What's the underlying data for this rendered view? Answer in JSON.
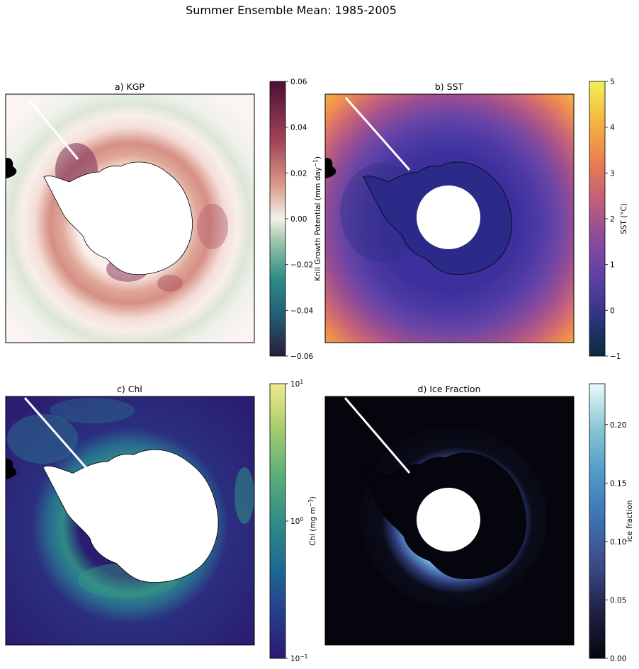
{
  "figure": {
    "title": "Summer Ensemble Mean: 1985-2005"
  },
  "chart_data": [
    {
      "type": "heatmap",
      "panel": "a",
      "title": "a) KGP",
      "projection": "south polar stereographic",
      "colormap": "diverging (teal-white-maroon)",
      "colorbar": {
        "label": "Krill Growth Potential (mm day$^{-1}$)",
        "label_main": "Krill Growth Potential (mm day",
        "label_sup": "−1",
        "label_end": ")",
        "range": [
          -0.06,
          0.06
        ],
        "scale": "linear",
        "ticks": [
          "−0.06",
          "−0.04",
          "−0.02",
          "0.00",
          "0.02",
          "0.04",
          "0.06"
        ],
        "colors": [
          "#2a1d39",
          "#235a73",
          "#2c8b86",
          "#82b89c",
          "#f4f1ec",
          "#d59a8a",
          "#a54558",
          "#4c0f36"
        ]
      },
      "field_notes": "ring of positive values around Antarctic coast, weak negative outer band"
    },
    {
      "type": "heatmap",
      "panel": "b",
      "title": "b) SST",
      "projection": "south polar stereographic",
      "colormap": "thermal (navy-purple-orange-yellow)",
      "colorbar": {
        "label_main": "SST (°C)",
        "range": [
          -1,
          5
        ],
        "scale": "linear",
        "ticks": [
          "−1",
          "0",
          "1",
          "2",
          "3",
          "4",
          "5"
        ],
        "colors": [
          "#0b2a3f",
          "#2f3480",
          "#5b3fa6",
          "#8d4b9c",
          "#c25f78",
          "#ea7f4f",
          "#f5b740",
          "#f0f254"
        ]
      }
    },
    {
      "type": "heatmap",
      "panel": "c",
      "title": "c) Chl",
      "projection": "south polar stereographic",
      "colormap": "haline (indigo-teal-yellow)",
      "colorbar": {
        "label_main": "Chl (mg m",
        "label_sup": "−3",
        "label_end": ")",
        "range": [
          0.1,
          10
        ],
        "scale": "log",
        "ticks_base": [
          "10",
          "10",
          "10"
        ],
        "ticks_exp": [
          "−1",
          "0",
          "1"
        ],
        "tick_values": [
          0.1,
          1,
          10
        ],
        "colors": [
          "#2a1b70",
          "#263f8f",
          "#1d6a91",
          "#2f8e87",
          "#5cae7a",
          "#a3cc6e",
          "#f2e98b"
        ]
      }
    },
    {
      "type": "heatmap",
      "panel": "d",
      "title": "d) Ice Fraction",
      "projection": "south polar stereographic",
      "colormap": "ice (black-blue-white)",
      "colorbar": {
        "label_main": "ice fraction",
        "range": [
          0.0,
          0.235
        ],
        "scale": "linear",
        "ticks": [
          "0.00",
          "0.05",
          "0.10",
          "0.15",
          "0.20"
        ],
        "tick_values": [
          0.0,
          0.05,
          0.1,
          0.15,
          0.2
        ],
        "colors": [
          "#05060e",
          "#1f2142",
          "#3c4785",
          "#3d6fb3",
          "#4f99c5",
          "#86c3d3",
          "#e9fbfb"
        ]
      }
    }
  ]
}
